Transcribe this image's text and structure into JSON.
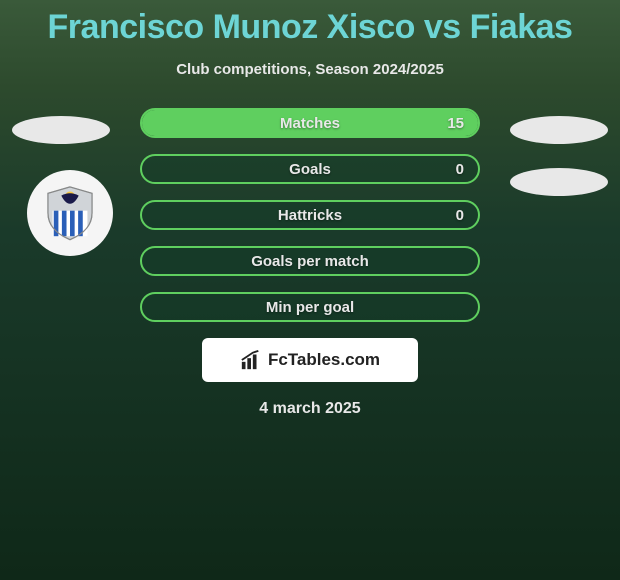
{
  "title": "Francisco Munoz Xisco vs Fiakas",
  "subtitle": "Club competitions, Season 2024/2025",
  "date": "4 march 2025",
  "brand": "FcTables.com",
  "colors": {
    "accent": "#6dd5d5",
    "bar_border": "#5fcf5f",
    "bar_fill": "#5fcf5f",
    "text": "#e8e8e8",
    "background_badge": "#f5f5f5",
    "brand_bg": "#ffffff",
    "brand_text": "#222222"
  },
  "stats": [
    {
      "label": "Matches",
      "value": "15",
      "fill_pct": 100
    },
    {
      "label": "Goals",
      "value": "0",
      "fill_pct": 0
    },
    {
      "label": "Hattricks",
      "value": "0",
      "fill_pct": 0
    },
    {
      "label": "Goals per match",
      "value": "",
      "fill_pct": 0
    },
    {
      "label": "Min per goal",
      "value": "",
      "fill_pct": 0
    }
  ],
  "badge": {
    "name": "anorthosis-club-badge",
    "shield_color": "#d0d4d8",
    "stripe_color": "#2a5fb8",
    "stripe_bg": "#ffffff",
    "bird_color": "#1a1a4a",
    "sun_color": "#f5c542"
  }
}
